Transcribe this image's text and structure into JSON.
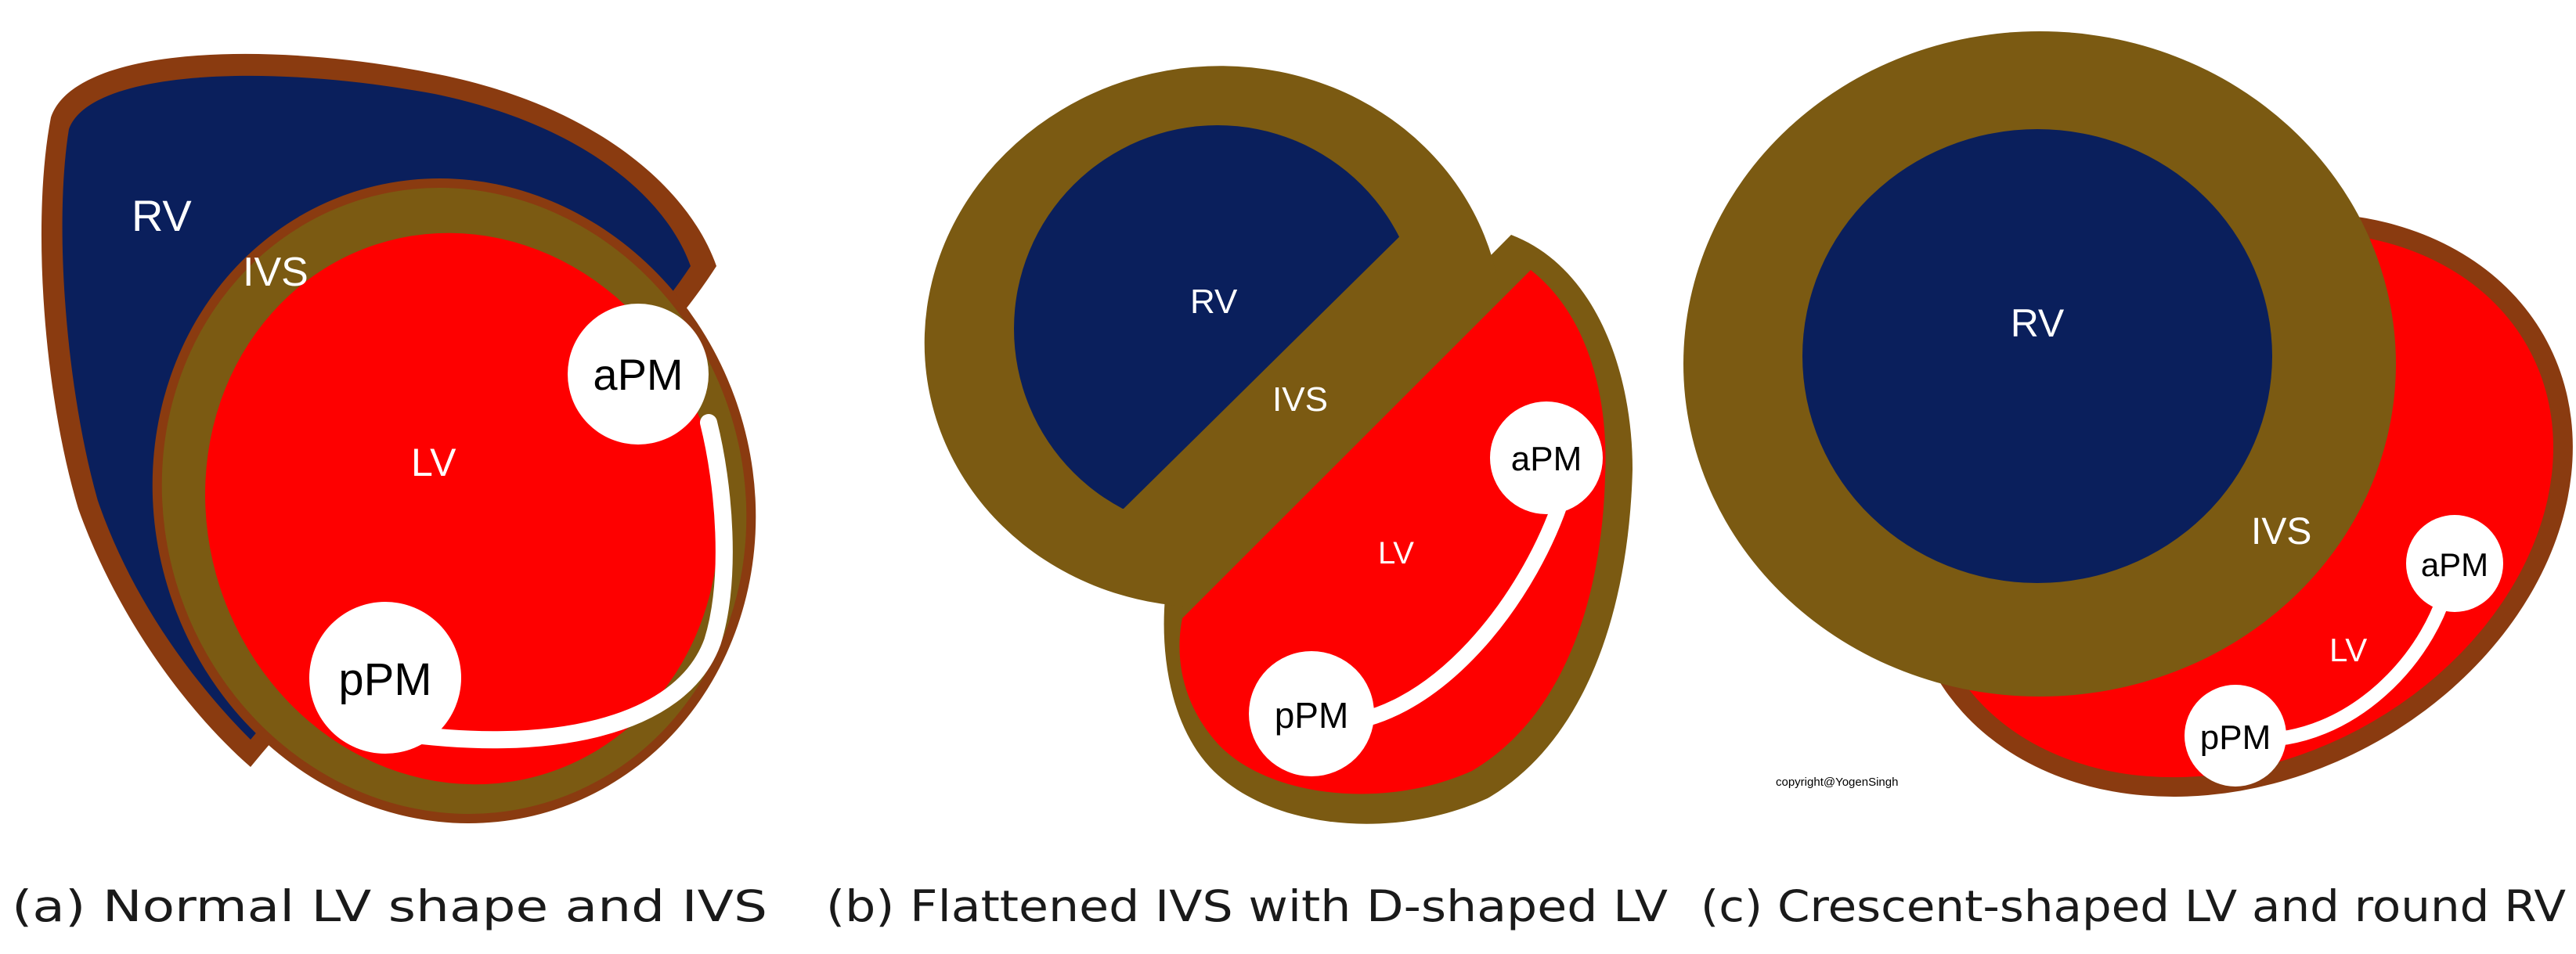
{
  "colors": {
    "rv": "#0a1f5c",
    "lv": "#fe0000",
    "septum_gold": "#7b5a12",
    "epicardium_brown": "#8a3b10",
    "papillary": "#ffffff"
  },
  "panels": [
    {
      "id": "a",
      "labels": {
        "rv": "RV",
        "ivs": "IVS",
        "lv": "LV",
        "apm": "aPM",
        "ppm": "pPM"
      },
      "caption": "(a) Normal LV shape and IVS"
    },
    {
      "id": "b",
      "labels": {
        "rv": "RV",
        "ivs": "IVS",
        "lv": "LV",
        "apm": "aPM",
        "ppm": "pPM"
      },
      "caption": "(b) Flattened IVS with D-shaped LV"
    },
    {
      "id": "c",
      "labels": {
        "rv": "RV",
        "ivs": "IVS",
        "lv": "LV",
        "apm": "aPM",
        "ppm": "pPM"
      },
      "caption": "(c) Crescent-shaped LV and round RV",
      "copyright": "copyright@YogenSingh"
    }
  ]
}
